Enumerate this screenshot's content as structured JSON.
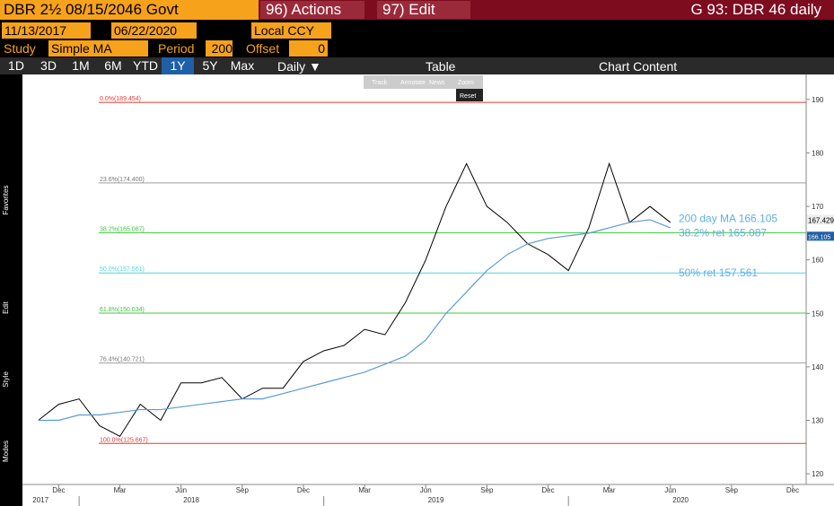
{
  "toolbar": {
    "security": "DBR 2½ 08/15/2046 Govt",
    "actions": "96) Actions",
    "edit": "97) Edit",
    "chart_name": "G 93: DBR 46 daily",
    "start_date": "11/13/2017",
    "end_date": "06/22/2020",
    "currency": "Local CCY",
    "study_label": "Study",
    "study": "Simple MA",
    "period_label": "Period",
    "period": "200",
    "offset_label": "Offset",
    "offset": "0",
    "ranges": [
      "1D",
      "3D",
      "1M",
      "6M",
      "YTD",
      "1Y",
      "5Y",
      "Max"
    ],
    "active_range": 5,
    "frequency": "Daily ▼",
    "table": "Table",
    "chart_content": "Chart Content",
    "modes": [
      "Track",
      "Annotate",
      "News",
      "Zoom"
    ],
    "reset": "Reset",
    "sidebar": [
      "Favorites",
      "Edit",
      "Style",
      "Modes"
    ]
  },
  "chart_data": {
    "type": "line",
    "x": [
      "2017-11",
      "2017-12",
      "2018-01",
      "2018-02",
      "2018-03",
      "2018-04",
      "2018-05",
      "2018-06",
      "2018-07",
      "2018-08",
      "2018-09",
      "2018-10",
      "2018-11",
      "2018-12",
      "2019-01",
      "2019-02",
      "2019-03",
      "2019-04",
      "2019-05",
      "2019-06",
      "2019-07",
      "2019-08",
      "2019-09",
      "2019-10",
      "2019-11",
      "2019-12",
      "2020-01",
      "2020-02",
      "2020-03",
      "2020-04",
      "2020-05",
      "2020-06"
    ],
    "series": [
      {
        "name": "DBR 46",
        "color": "#000000",
        "values": [
          130,
          133,
          134,
          129,
          127,
          133,
          130,
          137,
          137,
          138,
          134,
          136,
          136,
          141,
          143,
          144,
          147,
          146,
          152,
          160,
          170,
          178,
          170,
          167,
          163,
          161,
          158,
          166,
          178,
          167,
          170,
          167
        ]
      },
      {
        "name": "200 day MA",
        "color": "#5b9bd5",
        "values": [
          130,
          130,
          131,
          131,
          131.5,
          132,
          132,
          132.5,
          133,
          133.5,
          134,
          134,
          135,
          136,
          137,
          138,
          139,
          140.5,
          142,
          145,
          150,
          154,
          158,
          161,
          163,
          164,
          164.5,
          165,
          166,
          167,
          167.5,
          166
        ]
      }
    ],
    "xlim": [
      "2017-10",
      "2020-12"
    ],
    "xticks": [
      {
        "value": "2017-12",
        "label": "Dec"
      },
      {
        "value": "2018-03",
        "label": "Mar"
      },
      {
        "value": "2018-06",
        "label": "Jun"
      },
      {
        "value": "2018-09",
        "label": "Sep"
      },
      {
        "value": "2018-12",
        "label": "Dec"
      },
      {
        "value": "2019-03",
        "label": "Mar"
      },
      {
        "value": "2019-06",
        "label": "Jun"
      },
      {
        "value": "2019-09",
        "label": "Sep"
      },
      {
        "value": "2019-12",
        "label": "Dec"
      },
      {
        "value": "2020-03",
        "label": "Mar"
      },
      {
        "value": "2020-06",
        "label": "Jun"
      },
      {
        "value": "2020-09",
        "label": "Sep"
      },
      {
        "value": "2020-12",
        "label": "Dec"
      }
    ],
    "years": [
      "2017",
      "2018",
      "2019",
      "2020"
    ],
    "ylim": [
      118,
      194
    ],
    "yticks": [
      120,
      130,
      140,
      150,
      160,
      170,
      180,
      190
    ],
    "fib_levels": [
      {
        "value": 189.454,
        "label": "0.0%(189.454)",
        "color": "#e53935"
      },
      {
        "value": 174.4,
        "label": "23.6%(174.400)",
        "color": "#9e9e9e"
      },
      {
        "value": 165.087,
        "label": "38.2%(165.087)",
        "color": "#3cc83c"
      },
      {
        "value": 157.561,
        "label": "50.0%(157.561)",
        "color": "#4fd6e0"
      },
      {
        "value": 150.034,
        "label": "61.8%(150.034)",
        "color": "#3cc83c"
      },
      {
        "value": 140.721,
        "label": "76.4%(140.721)",
        "color": "#9e9e9e"
      },
      {
        "value": 125.667,
        "label": "100.0%(125.667)",
        "color": "#e53935"
      }
    ],
    "annotations": [
      "200 day MA 166.105",
      "38.2% ret 165.087",
      "50% ret 157.561"
    ],
    "last_price": 167.429,
    "ma_last": 166.105
  }
}
